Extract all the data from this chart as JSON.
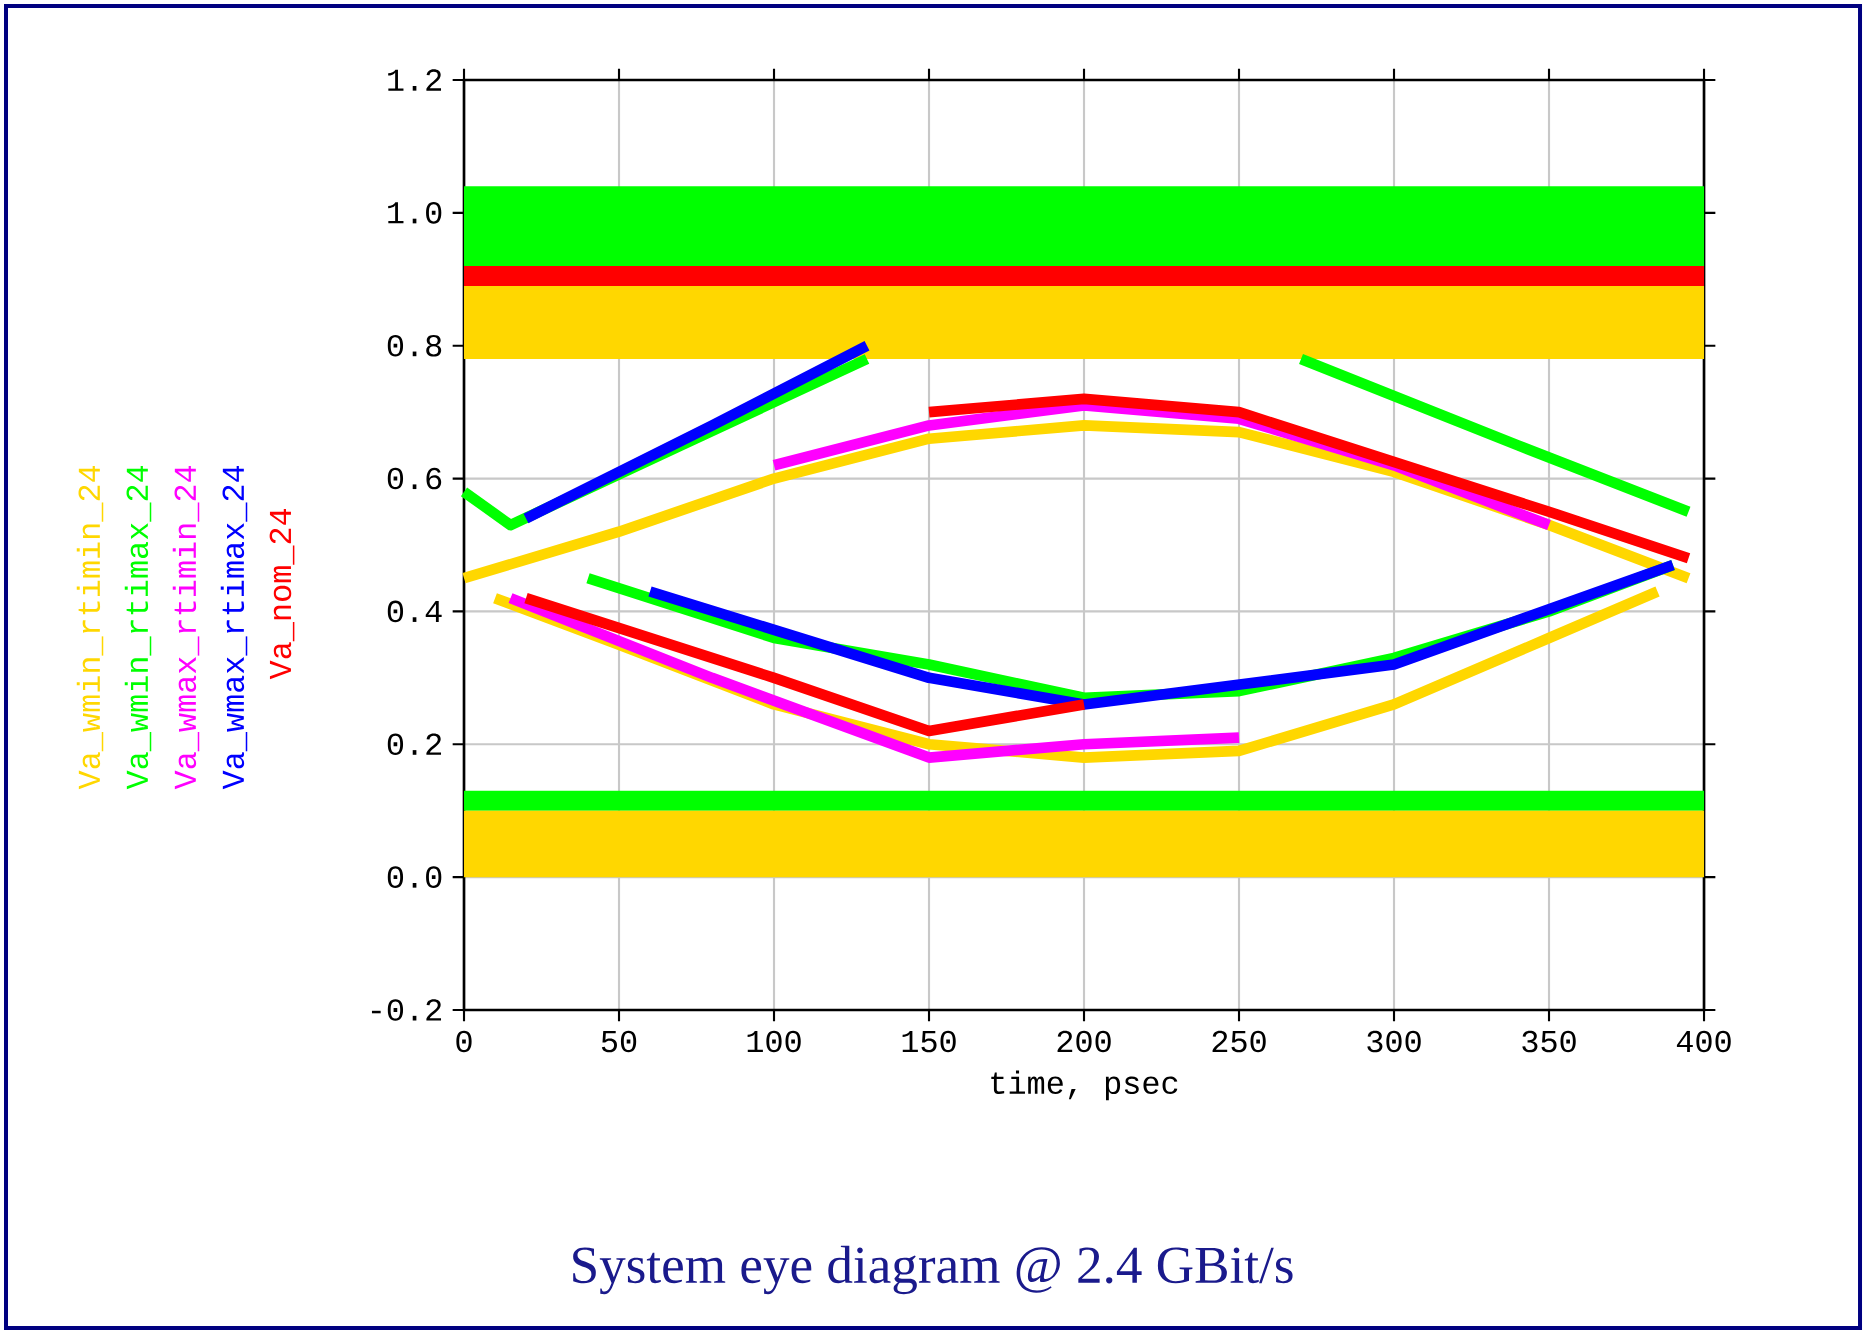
{
  "chart_data": {
    "type": "line",
    "title": "System eye diagram @ 2.4 GBit/s",
    "xlabel": "time, psec",
    "xlim": [
      0,
      400
    ],
    "ylim": [
      -0.2,
      1.2
    ],
    "xticks": [
      0,
      50,
      100,
      150,
      200,
      250,
      300,
      350,
      400
    ],
    "yticks": [
      -0.2,
      {
        "value": 0,
        "label": "0.0"
      },
      0.2,
      0.4,
      0.6,
      0.8,
      {
        "value": 1,
        "label": "1.0"
      },
      1.2
    ],
    "grid": true,
    "legend": "left",
    "line_style": "solid",
    "marker": "none",
    "bands": [
      {
        "axis": "y",
        "from": 0.9,
        "to": 1.04,
        "color": "#00ff00"
      },
      {
        "axis": "y",
        "from": 0.1,
        "to": 0.13,
        "color": "#00ff00"
      },
      {
        "axis": "y",
        "from": 0.89,
        "to": 0.92,
        "color": "#ff0000"
      },
      {
        "axis": "y",
        "from": 0.78,
        "to": 0.89,
        "color": "#ffd700"
      },
      {
        "axis": "y",
        "from": 0,
        "to": 0.1,
        "color": "#ffd700"
      }
    ],
    "series": [
      {
        "name": "Va_wmin_rtimin_24",
        "color": "#ffd700",
        "x": [
          0,
          50,
          100,
          150,
          200,
          250,
          300,
          350,
          395
        ],
        "values": [
          0.45,
          0.52,
          0.6,
          0.66,
          0.68,
          0.67,
          0.61,
          0.53,
          0.45
        ]
      },
      {
        "name": "Va_wmin_rtimax_24",
        "color": "#00ff00",
        "x": [
          0,
          15,
          70,
          130,
          200,
          270,
          340,
          395
        ],
        "values": [
          0.58,
          0.53,
          0.65,
          0.78,
          null,
          0.78,
          0.65,
          0.55
        ]
      },
      {
        "name": "Va_wmax_rtimin_24",
        "color": "#ff00ff",
        "x": [
          100,
          150,
          200,
          250,
          300,
          350
        ],
        "values": [
          0.62,
          0.68,
          0.71,
          0.69,
          0.62,
          0.53
        ]
      },
      {
        "name": "Va_wmax_rtimax_24",
        "color": "#0000ff",
        "x": [
          20,
          80,
          130
        ],
        "values": [
          0.54,
          0.68,
          0.8
        ]
      },
      {
        "name": "Va_nom_24",
        "color": "#ff0000",
        "x": [
          150,
          200,
          250,
          350,
          395
        ],
        "values": [
          0.7,
          0.72,
          0.7,
          0.55,
          0.48
        ]
      },
      {
        "color": "#ffd700",
        "x": [
          10,
          50,
          100,
          150,
          200,
          250,
          300,
          350,
          385
        ],
        "values": [
          0.42,
          0.35,
          0.26,
          0.2,
          0.18,
          0.19,
          0.26,
          0.36,
          0.43
        ]
      },
      {
        "color": "#00ff00",
        "x": [
          40,
          100,
          150,
          200,
          250,
          300,
          350,
          390
        ],
        "values": [
          0.45,
          0.36,
          0.32,
          0.27,
          0.28,
          0.33,
          0.4,
          0.47
        ]
      },
      {
        "color": "#ff00ff",
        "x": [
          15,
          80,
          150,
          200,
          250
        ],
        "values": [
          0.42,
          0.3,
          0.18,
          0.2,
          0.21
        ]
      },
      {
        "color": "#0000ff",
        "x": [
          60,
          150,
          200,
          300,
          390
        ],
        "values": [
          0.43,
          0.3,
          0.26,
          0.32,
          0.47
        ]
      },
      {
        "color": "#ff0000",
        "x": [
          20,
          100,
          150,
          200
        ],
        "values": [
          0.42,
          0.3,
          0.22,
          0.26
        ]
      }
    ]
  }
}
